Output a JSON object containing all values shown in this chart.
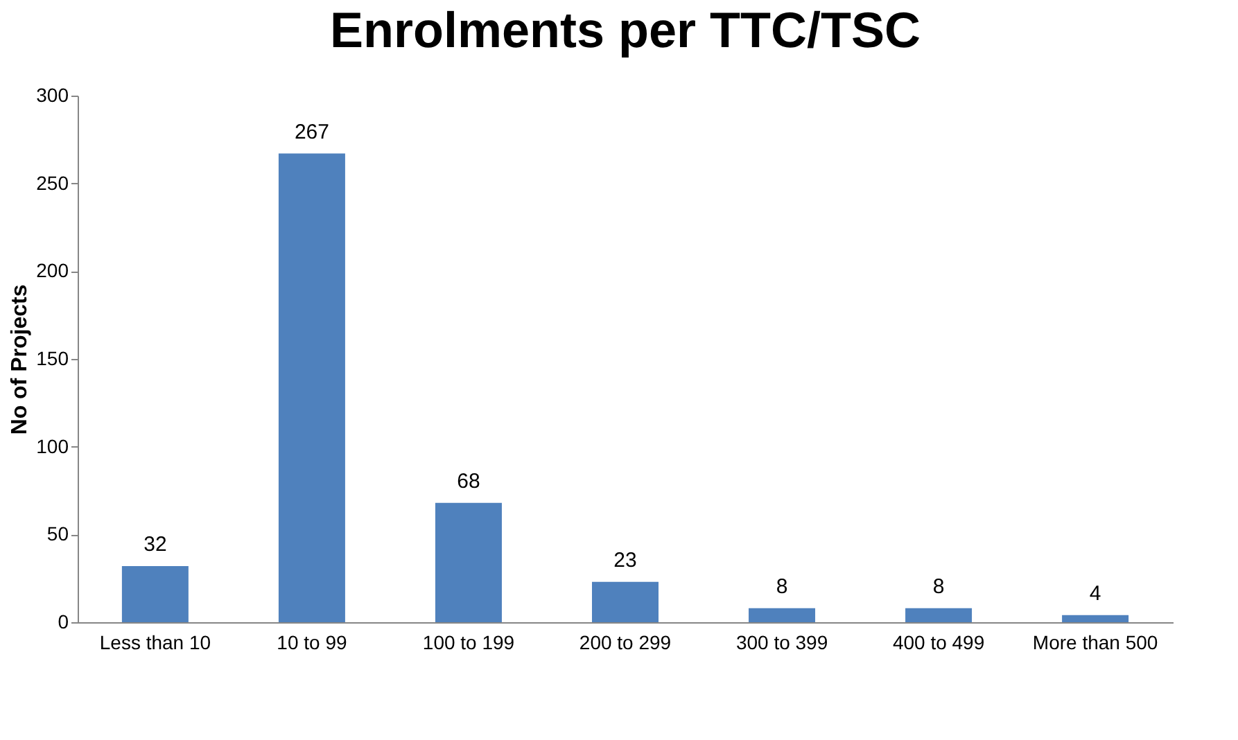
{
  "chart_data": {
    "type": "bar",
    "title": "Enrolments per TTC/TSC",
    "ylabel": "No of Projects",
    "categories": [
      "Less than 10",
      "10 to 99",
      "100 to 199",
      "200 to 299",
      "300 to 399",
      "400 to 499",
      "More than 500"
    ],
    "values": [
      32,
      267,
      68,
      23,
      8,
      8,
      4
    ],
    "color": "#4f81bd",
    "ylim": [
      0,
      300
    ],
    "yticks": [
      0,
      50,
      100,
      150,
      200,
      250,
      300
    ],
    "grid": false,
    "data_labels": true
  }
}
